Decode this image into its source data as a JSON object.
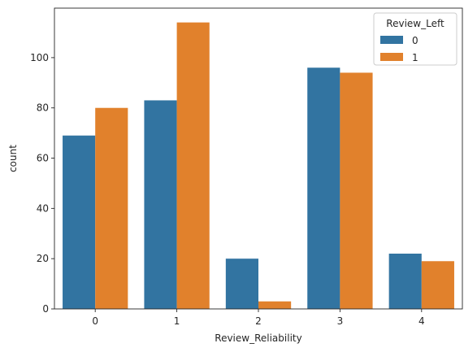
{
  "chart_data": {
    "type": "bar",
    "xlabel": "Review_Reliability",
    "ylabel": "count",
    "categories": [
      "0",
      "1",
      "2",
      "3",
      "4"
    ],
    "series": [
      {
        "name": "0",
        "values": [
          69,
          83,
          20,
          96,
          22
        ],
        "color": "#3274a1"
      },
      {
        "name": "1",
        "values": [
          80,
          114,
          3,
          94,
          19
        ],
        "color": "#e1812c"
      }
    ],
    "ylim": [
      0,
      119.7
    ],
    "yticks": [
      0,
      20,
      40,
      60,
      80,
      100
    ],
    "legend": {
      "title": "Review_Left",
      "placement": "top-right"
    },
    "grid": false
  }
}
